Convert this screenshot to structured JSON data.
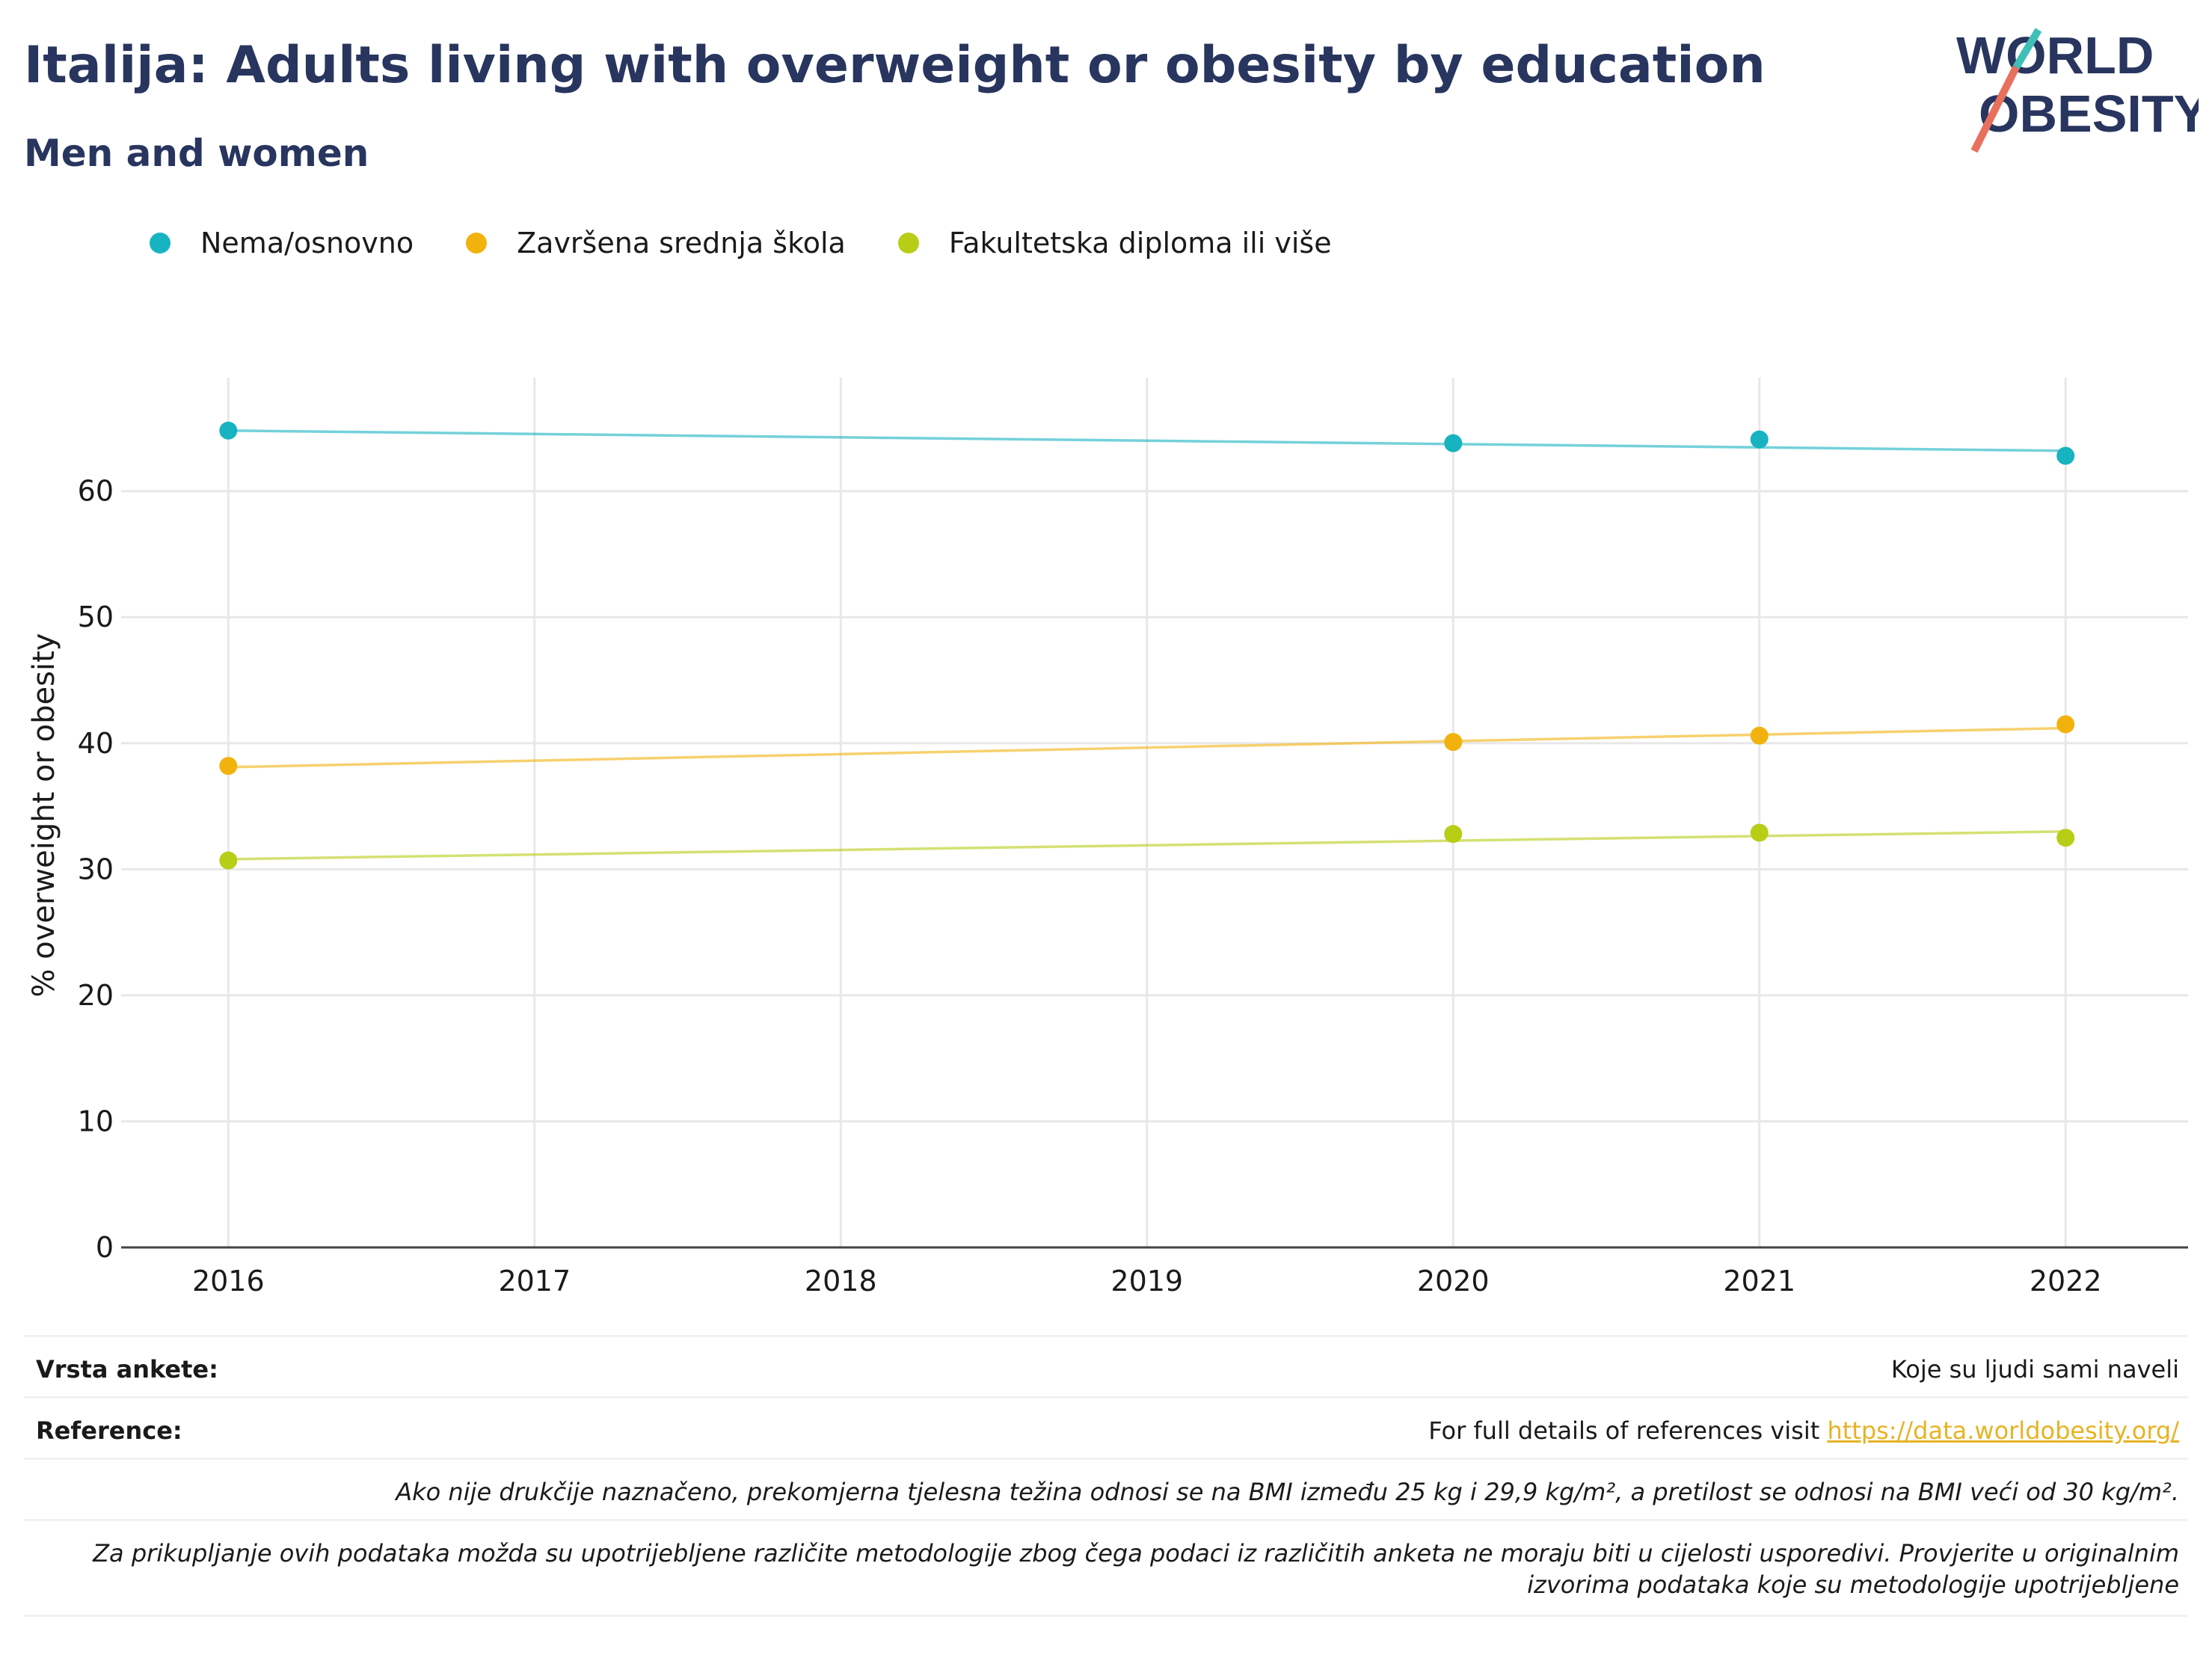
{
  "title": "Italija: Adults living with overweight or obesity by education",
  "subtitle": "Men and women",
  "logo": {
    "line1": "WORLD",
    "line2": "OBESITY"
  },
  "chart_data": {
    "type": "line",
    "ylabel": "% overweight or obesity",
    "xlabel": "",
    "ylim": [
      0,
      69
    ],
    "xlim": [
      2015.65,
      2022.4
    ],
    "y_ticks": [
      0,
      10,
      20,
      30,
      40,
      50,
      60
    ],
    "x_ticks": [
      2016,
      2017,
      2018,
      2019,
      2020,
      2021,
      2022
    ],
    "grid": true,
    "legend_position": "top-left",
    "series": [
      {
        "name": "Nema/osnovno",
        "color": "#17b3c1",
        "x": [
          2016,
          2020,
          2021,
          2022
        ],
        "values": [
          64.8,
          63.8,
          64.1,
          62.8
        ],
        "trend": [
          64.8,
          63.2
        ]
      },
      {
        "name": "Završena srednja škola",
        "color": "#f2b20d",
        "x": [
          2016,
          2020,
          2021,
          2022
        ],
        "values": [
          38.2,
          40.1,
          40.6,
          41.5
        ],
        "trend": [
          38.1,
          41.2
        ]
      },
      {
        "name": "Fakultetska diploma ili više",
        "color": "#b8cd16",
        "x": [
          2016,
          2020,
          2021,
          2022
        ],
        "values": [
          30.7,
          32.8,
          32.9,
          32.5
        ],
        "trend": [
          30.8,
          33.0
        ]
      }
    ]
  },
  "footer": {
    "survey_label": "Vrsta ankete:",
    "survey_value": "Koje su ljudi sami naveli",
    "ref_label": "Reference:",
    "ref_text": "For full details of references visit ",
    "ref_link": "https://data.worldobesity.org/",
    "note1": "Ako nije drukčije naznačeno, prekomjerna tjelesna težina odnosi se na BMI između 25 kg i 29,9 kg/m², a pretilost se odnosi na BMI veći od 30 kg/m².",
    "note2": "Za prikupljanje ovih podataka možda su upotrijebljene različite metodologije zbog čega podaci iz različitih anketa ne moraju biti u cijelosti usporedivi. Provjerite u originalnim izvorima podataka koje su metodologije upotrijebljene"
  }
}
